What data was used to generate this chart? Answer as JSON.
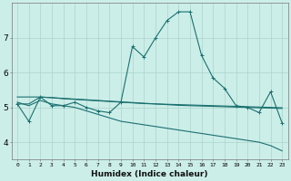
{
  "xlabel": "Humidex (Indice chaleur)",
  "background_color": "#cceee8",
  "grid_color": "#aad4cc",
  "line_color": "#1a7070",
  "xlim": [
    -0.5,
    23.5
  ],
  "ylim": [
    3.5,
    8.0
  ],
  "yticks": [
    4,
    5,
    6,
    7
  ],
  "xtick_labels": [
    "0",
    "1",
    "2",
    "3",
    "4",
    "5",
    "6",
    "7",
    "8",
    "9",
    "10",
    "11",
    "12",
    "13",
    "14",
    "15",
    "16",
    "17",
    "18",
    "19",
    "20",
    "21",
    "22",
    "23"
  ],
  "series1": [
    5.1,
    4.6,
    5.3,
    5.05,
    5.05,
    5.15,
    5.0,
    4.9,
    4.85,
    5.15,
    6.75,
    6.45,
    7.0,
    7.5,
    7.75,
    7.75,
    6.5,
    5.85,
    5.55,
    5.05,
    5.0,
    4.85,
    5.45,
    4.55
  ],
  "series2": [
    5.3,
    5.3,
    5.3,
    5.28,
    5.26,
    5.24,
    5.22,
    5.2,
    5.18,
    5.16,
    5.14,
    5.12,
    5.1,
    5.08,
    5.06,
    5.05,
    5.04,
    5.03,
    5.02,
    5.01,
    5.0,
    4.99,
    4.98,
    4.97
  ],
  "series3": [
    5.1,
    5.1,
    5.3,
    5.28,
    5.25,
    5.23,
    5.21,
    5.19,
    5.17,
    5.15,
    5.13,
    5.11,
    5.1,
    5.09,
    5.08,
    5.07,
    5.06,
    5.05,
    5.04,
    5.03,
    5.02,
    5.01,
    5.0,
    4.99
  ],
  "series4": [
    5.15,
    5.05,
    5.2,
    5.1,
    5.05,
    5.0,
    4.9,
    4.8,
    4.7,
    4.6,
    4.55,
    4.5,
    4.45,
    4.4,
    4.35,
    4.3,
    4.25,
    4.2,
    4.15,
    4.1,
    4.05,
    4.0,
    3.9,
    3.75
  ]
}
